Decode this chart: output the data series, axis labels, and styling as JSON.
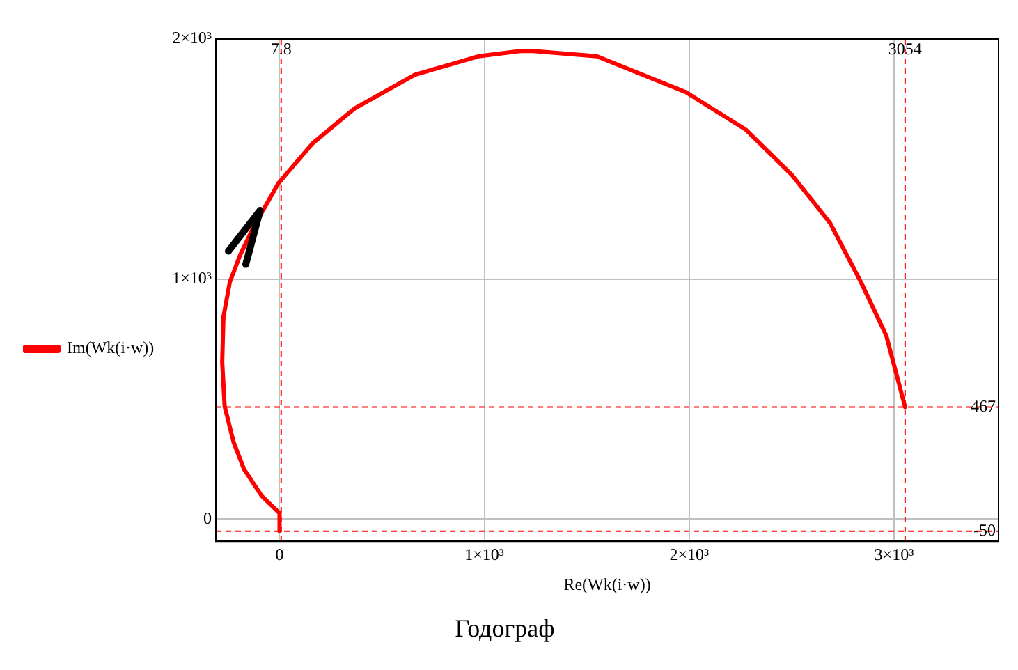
{
  "chart_data": {
    "type": "line",
    "title": "Годограф",
    "xlabel": "Re(Wk(i·w))",
    "xlim": [
      -311,
      3510
    ],
    "ylim": [
      -92,
      2000
    ],
    "xticks": [
      0,
      {
        "value": 1000,
        "label": "1×10³"
      },
      {
        "value": 2000,
        "label": "2×10³"
      },
      {
        "value": 3000,
        "label": "3×10³"
      }
    ],
    "yticks": [
      0,
      {
        "value": 1000,
        "label": "1×10³"
      },
      {
        "value": 2000,
        "label": "2×10³"
      }
    ],
    "grid": true,
    "legend": "left",
    "marker": "none",
    "line_style": "solid",
    "ref_lines": [
      {
        "axis": "x",
        "value": 7.8,
        "label": "7.8",
        "color": "#ff0000",
        "line_style": "dashed"
      },
      {
        "axis": "x",
        "value": 3054,
        "label": "3054",
        "color": "#ff0000",
        "line_style": "dashed"
      },
      {
        "axis": "y",
        "value": 467,
        "label": "467",
        "color": "#ff0000",
        "line_style": "dashed"
      },
      {
        "axis": "y",
        "value": -50,
        "label": "-50",
        "color": "#ff0000",
        "line_style": "dashed"
      }
    ],
    "series": [
      {
        "name": "Im(Wk(i·w))",
        "color": "#ff0000",
        "x": [
          0,
          0,
          -87,
          -174,
          -224,
          -268,
          -280,
          -274,
          -243,
          -193,
          -131,
          -6,
          162,
          367,
          660,
          971,
          1176,
          1238,
          1549,
          1985,
          2277,
          2502,
          2688,
          2838,
          2962,
          3054
        ],
        "values": [
          -50,
          25,
          97,
          209,
          320,
          470,
          654,
          842,
          987,
          1099,
          1210,
          1399,
          1566,
          1711,
          1851,
          1928,
          1950,
          1950,
          1928,
          1778,
          1622,
          1433,
          1233,
          988,
          765,
          467
        ]
      }
    ]
  }
}
